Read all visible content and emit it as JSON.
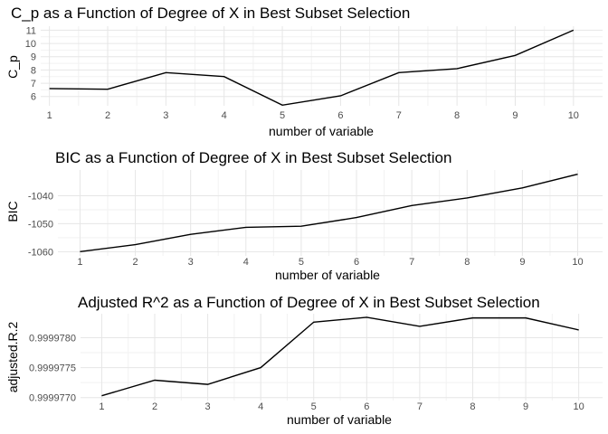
{
  "chart_data": [
    {
      "type": "line",
      "title": "C_p as a Function of Degree of X in Best Subset Selection",
      "xlabel": "number of variable",
      "ylabel": "C_p",
      "x": [
        1,
        2,
        3,
        4,
        5,
        6,
        7,
        8,
        9,
        10
      ],
      "y": [
        6.6,
        6.55,
        7.8,
        7.5,
        5.35,
        6.05,
        7.8,
        8.1,
        9.1,
        11.0
      ],
      "xticks": [
        "1",
        "2",
        "3",
        "4",
        "5",
        "6",
        "7",
        "8",
        "9",
        "10"
      ],
      "yticks": [
        "6",
        "7",
        "8",
        "9",
        "10",
        "11"
      ],
      "ytick_values": [
        6,
        7,
        8,
        9,
        10,
        11
      ],
      "xlim": [
        0.85,
        10.5
      ],
      "ylim": [
        5.3,
        11.3
      ],
      "grid": true
    },
    {
      "type": "line",
      "title": "BIC as a Function of Degree of X in Best Subset Selection",
      "xlabel": "number of variable",
      "ylabel": "BIC",
      "x": [
        1,
        2,
        3,
        4,
        5,
        6,
        7,
        8,
        9,
        10
      ],
      "y": [
        -1060.0,
        -1057.5,
        -1053.8,
        -1051.3,
        -1050.9,
        -1047.8,
        -1043.5,
        -1040.8,
        -1037.2,
        -1032.3
      ],
      "xticks": [
        "1",
        "2",
        "3",
        "4",
        "5",
        "6",
        "7",
        "8",
        "9",
        "10"
      ],
      "yticks": [
        "-1060",
        "-1050",
        "-1040"
      ],
      "ytick_values": [
        -1060,
        -1050,
        -1040
      ],
      "xlim": [
        0.6,
        10.45
      ],
      "ylim": [
        -1061.5,
        -1030.8
      ],
      "grid": true
    },
    {
      "type": "line",
      "title": "Adjusted R^2 as a Function of Degree of X in Best Subset Selection",
      "xlabel": "number of variable",
      "ylabel": "adjusted.R.2",
      "x": [
        1,
        2,
        3,
        4,
        5,
        6,
        7,
        8,
        9,
        10
      ],
      "y": [
        0.99997703,
        0.99997729,
        0.99997722,
        0.9999775,
        0.99997826,
        0.99997834,
        0.99997819,
        0.99997833,
        0.99997833,
        0.99997813
      ],
      "xticks": [
        "1",
        "2",
        "3",
        "4",
        "5",
        "6",
        "7",
        "8",
        "9",
        "10"
      ],
      "yticks": [
        "0.9999770",
        "0.9999775",
        "0.9999780"
      ],
      "ytick_values": [
        0.999977,
        0.9999775,
        0.999978
      ],
      "xlim": [
        0.6,
        10.45
      ],
      "ylim": [
        0.99997695,
        0.9999784
      ],
      "grid": true
    }
  ]
}
